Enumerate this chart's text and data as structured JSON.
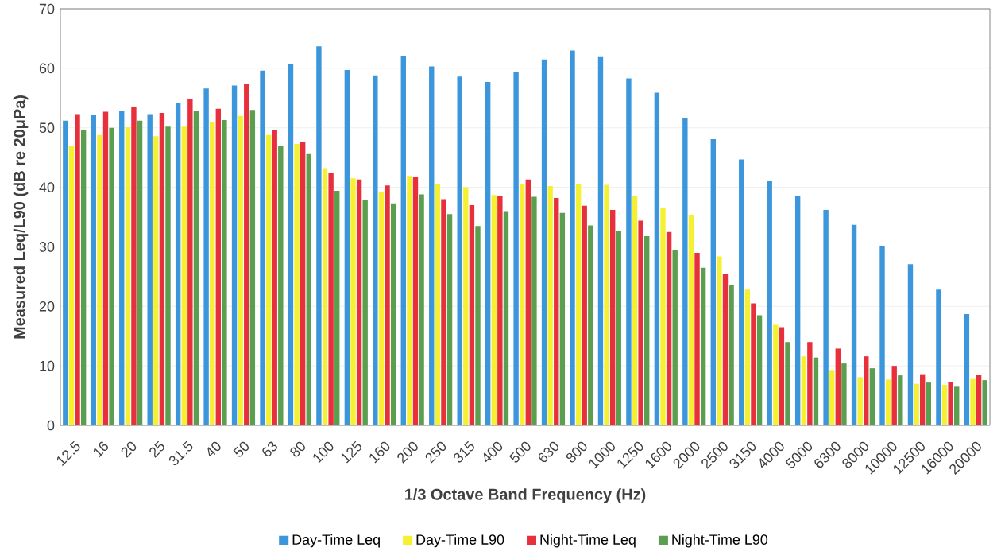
{
  "chart_data": {
    "type": "bar",
    "xlabel": "1/3 Octave Band Frequency (Hz)",
    "ylabel": "Measured Leq/L90 (dB re 20μPa)",
    "categories": [
      "12.5",
      "16",
      "20",
      "25",
      "31.5",
      "40",
      "50",
      "63",
      "80",
      "100",
      "125",
      "160",
      "200",
      "250",
      "315",
      "400",
      "500",
      "630",
      "800",
      "1000",
      "1250",
      "1600",
      "2000",
      "2500",
      "3150",
      "4000",
      "5000",
      "6300",
      "8000",
      "10000",
      "12500",
      "16000",
      "20000"
    ],
    "series": [
      {
        "name": "Day-Time Leq",
        "color": "#3c96dc",
        "values": [
          51.2,
          52.2,
          52.8,
          52.3,
          54.1,
          56.6,
          57.1,
          59.6,
          60.7,
          63.7,
          59.7,
          58.8,
          62.0,
          60.3,
          58.6,
          57.7,
          59.3,
          61.5,
          63.0,
          61.9,
          58.3,
          55.9,
          51.6,
          48.1,
          44.7,
          41.0,
          38.5,
          36.2,
          33.7,
          30.2,
          27.1,
          22.8,
          18.7
        ]
      },
      {
        "name": "Day-Time L90",
        "color": "#f5f032",
        "values": [
          47.0,
          48.8,
          50.1,
          48.6,
          50.2,
          50.9,
          52.0,
          48.8,
          47.3,
          43.2,
          41.5,
          39.2,
          41.9,
          40.5,
          40.0,
          38.7,
          40.5,
          40.2,
          40.5,
          40.4,
          38.5,
          36.6,
          35.3,
          28.4,
          22.8,
          16.9,
          11.6,
          9.3,
          8.1,
          7.7,
          7.0,
          6.8,
          7.8
        ]
      },
      {
        "name": "Night-Time Leq",
        "color": "#e8303c",
        "values": [
          52.3,
          52.7,
          53.5,
          52.5,
          54.9,
          53.2,
          57.3,
          49.6,
          47.6,
          42.4,
          41.3,
          40.3,
          41.8,
          38.0,
          37.0,
          38.6,
          41.3,
          38.2,
          36.9,
          36.2,
          34.4,
          32.5,
          29.0,
          25.5,
          20.5,
          16.5,
          14.0,
          12.9,
          11.6,
          10.0,
          8.6,
          7.3,
          8.5
        ]
      },
      {
        "name": "Night-Time L90",
        "color": "#5a9e4f",
        "values": [
          49.6,
          50.0,
          51.2,
          50.2,
          52.9,
          51.3,
          53.0,
          47.0,
          45.6,
          39.4,
          37.9,
          37.3,
          38.8,
          35.5,
          33.5,
          36.0,
          38.4,
          35.7,
          33.6,
          32.7,
          31.8,
          29.5,
          26.5,
          23.6,
          18.5,
          14.0,
          11.4,
          10.4,
          9.6,
          8.4,
          7.2,
          6.5,
          7.6
        ]
      }
    ],
    "ylim": [
      0,
      70
    ],
    "yticks": [
      0,
      10,
      20,
      30,
      40,
      50,
      60,
      70
    ],
    "grid": "y",
    "legend": "bottom"
  }
}
